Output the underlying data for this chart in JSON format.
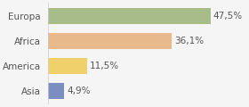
{
  "categories": [
    "Asia",
    "America",
    "Africa",
    "Europa"
  ],
  "values": [
    4.9,
    11.5,
    36.1,
    47.5
  ],
  "labels": [
    "4,9%",
    "11,5%",
    "36,1%",
    "47,5%"
  ],
  "bar_colors": [
    "#7a8fc0",
    "#f0d06a",
    "#e8b98a",
    "#a8bc8a"
  ],
  "background_color": "#f5f5f5",
  "xlim": [
    0,
    58
  ],
  "bar_height": 0.62,
  "label_fontsize": 7.5,
  "category_fontsize": 7.5
}
